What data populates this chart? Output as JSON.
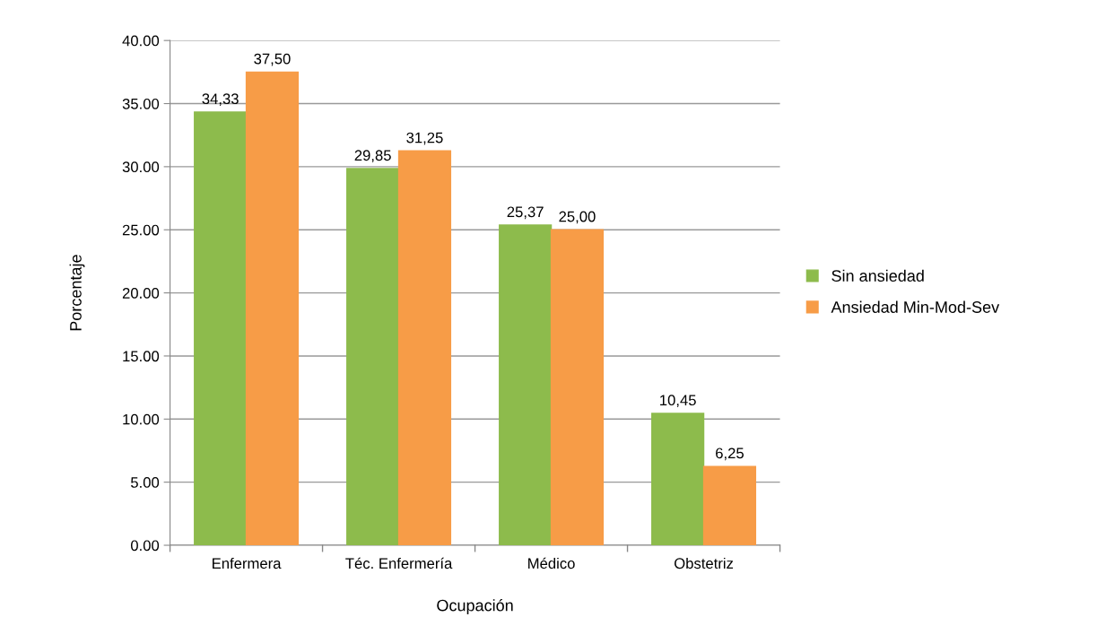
{
  "chart_data": {
    "type": "bar",
    "xlabel": "Ocupación",
    "ylabel": "Porcentaje",
    "categories": [
      "Enfermera",
      "Téc. Enfermería",
      "Médico",
      "Obstetriz"
    ],
    "series": [
      {
        "name": "Sin ansiedad",
        "color": "#8dbb4c",
        "values": [
          34.33,
          29.85,
          25.37,
          10.45
        ],
        "value_labels": [
          "34,33",
          "29,85",
          "25,37",
          "10,45"
        ]
      },
      {
        "name": "Ansiedad Min-Mod-Sev",
        "color": "#f79c47",
        "values": [
          37.5,
          31.25,
          25.0,
          6.25
        ],
        "value_labels": [
          "37,50",
          "31,25",
          "25,00",
          "6,25"
        ]
      }
    ],
    "ylim": [
      0,
      40
    ],
    "yticks": [
      {
        "value": 0,
        "label": "0.00"
      },
      {
        "value": 5,
        "label": "5.00"
      },
      {
        "value": 10,
        "label": "10.00"
      },
      {
        "value": 15,
        "label": "15.00"
      },
      {
        "value": 20,
        "label": "20.00"
      },
      {
        "value": 25,
        "label": "25.00"
      },
      {
        "value": 30,
        "label": "30.00"
      },
      {
        "value": 35,
        "label": "35.00"
      },
      {
        "value": 40,
        "label": "40.00"
      }
    ],
    "grid": "y",
    "legend": "right"
  }
}
